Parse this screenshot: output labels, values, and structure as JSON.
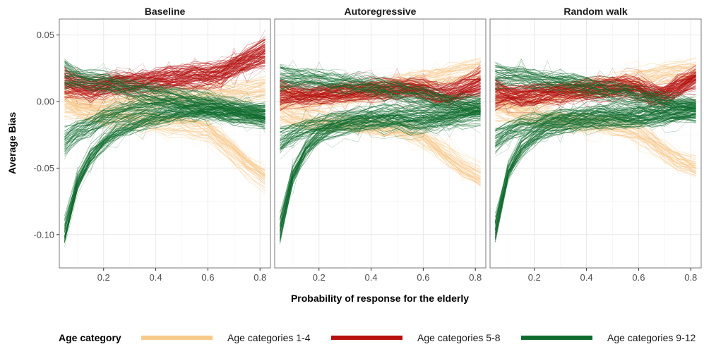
{
  "chart_data": {
    "type": "line",
    "xlabel": "Probability of response for the elderly",
    "ylabel": "Average Bias",
    "xlim": [
      0.03,
      0.84
    ],
    "ylim": [
      -0.125,
      0.062
    ],
    "x_ticks": [
      0.2,
      0.4,
      0.6,
      0.8
    ],
    "x_tick_labels": [
      "0.2",
      "0.4",
      "0.6",
      "0.8"
    ],
    "y_ticks": [
      -0.1,
      -0.05,
      0.0,
      0.05
    ],
    "y_tick_labels": [
      "-0.10",
      "-0.05",
      "0.00",
      "0.05"
    ],
    "grid": true,
    "legend": {
      "title": "Age category",
      "placement": "bottom",
      "entries": [
        {
          "label": "Age categories 1-4",
          "color": "#f8c98a"
        },
        {
          "label": "Age categories 5-8",
          "color": "#b5100f"
        },
        {
          "label": "Age categories 9-12",
          "color": "#0e6b2e"
        }
      ]
    },
    "x": [
      0.05,
      0.1,
      0.15,
      0.2,
      0.25,
      0.3,
      0.35,
      0.4,
      0.45,
      0.5,
      0.55,
      0.6,
      0.65,
      0.7,
      0.75,
      0.82
    ],
    "panels": [
      {
        "title": "Baseline",
        "series": [
          {
            "group": "1-4",
            "center": [
              -0.002,
              -0.008,
              -0.01,
              -0.012,
              -0.013,
              -0.014,
              -0.015,
              -0.016,
              -0.017,
              -0.018,
              -0.02,
              -0.022,
              -0.03,
              -0.038,
              -0.048,
              -0.058
            ]
          },
          {
            "group": "1-4",
            "center": [
              0.003,
              0.0,
              -0.002,
              -0.002,
              -0.001,
              0.0,
              0.001,
              0.002,
              0.003,
              0.004,
              0.004,
              0.005,
              0.006,
              0.007,
              0.008,
              0.01
            ]
          },
          {
            "group": "5-8",
            "center": [
              0.012,
              0.01,
              0.008,
              0.01,
              0.012,
              0.011,
              0.013,
              0.014,
              0.015,
              0.016,
              0.017,
              0.018,
              0.02,
              0.026,
              0.032,
              0.04
            ]
          },
          {
            "group": "5-8",
            "center": [
              0.016,
              0.013,
              0.011,
              0.013,
              0.015,
              0.014,
              0.016,
              0.017,
              0.018,
              0.019,
              0.021,
              0.02,
              0.022,
              0.025,
              0.028,
              0.032
            ]
          },
          {
            "group": "9-12",
            "center": [
              -0.098,
              -0.06,
              -0.04,
              -0.03,
              -0.022,
              -0.018,
              -0.015,
              -0.012,
              -0.01,
              -0.008,
              -0.007,
              -0.006,
              -0.006,
              -0.007,
              -0.008,
              -0.009
            ]
          },
          {
            "group": "9-12",
            "center": [
              -0.03,
              -0.022,
              -0.018,
              -0.012,
              -0.008,
              -0.006,
              -0.004,
              -0.003,
              -0.002,
              -0.003,
              -0.004,
              -0.005,
              -0.006,
              -0.007,
              -0.008,
              -0.01
            ]
          },
          {
            "group": "9-12",
            "center": [
              0.02,
              0.018,
              0.016,
              0.014,
              0.012,
              0.01,
              0.008,
              0.006,
              0.004,
              0.002,
              0.0,
              -0.002,
              -0.004,
              -0.006,
              -0.008,
              -0.01
            ]
          }
        ]
      },
      {
        "title": "Autoregressive",
        "series": [
          {
            "group": "1-4",
            "center": [
              -0.005,
              -0.01,
              -0.012,
              -0.013,
              -0.014,
              -0.015,
              -0.016,
              -0.017,
              -0.018,
              -0.02,
              -0.022,
              -0.025,
              -0.032,
              -0.04,
              -0.048,
              -0.055
            ]
          },
          {
            "group": "1-4",
            "center": [
              0.004,
              0.002,
              0.0,
              0.001,
              0.003,
              0.004,
              0.006,
              0.008,
              0.01,
              0.012,
              0.014,
              0.016,
              0.018,
              0.02,
              0.022,
              0.024
            ]
          },
          {
            "group": "5-8",
            "center": [
              0.008,
              0.007,
              0.006,
              0.007,
              0.008,
              0.008,
              0.009,
              0.01,
              0.01,
              0.011,
              0.012,
              0.011,
              0.006,
              0.004,
              0.008,
              0.012
            ]
          },
          {
            "group": "5-8",
            "center": [
              0.004,
              0.004,
              0.003,
              0.004,
              0.005,
              0.006,
              0.006,
              0.007,
              0.007,
              0.008,
              0.009,
              0.008,
              0.005,
              0.006,
              0.01,
              0.016
            ]
          },
          {
            "group": "9-12",
            "center": [
              -0.096,
              -0.055,
              -0.036,
              -0.026,
              -0.02,
              -0.018,
              -0.016,
              -0.015,
              -0.015,
              -0.015,
              -0.016,
              -0.016,
              -0.015,
              -0.013,
              -0.011,
              -0.009
            ]
          },
          {
            "group": "9-12",
            "center": [
              -0.03,
              -0.024,
              -0.02,
              -0.018,
              -0.016,
              -0.014,
              -0.012,
              -0.011,
              -0.01,
              -0.01,
              -0.01,
              -0.01,
              -0.009,
              -0.008,
              -0.006,
              -0.004
            ]
          },
          {
            "group": "9-12",
            "center": [
              0.018,
              0.018,
              0.017,
              0.016,
              0.015,
              0.014,
              0.013,
              0.012,
              0.01,
              0.008,
              0.006,
              0.004,
              0.002,
              0.0,
              -0.002,
              -0.004
            ]
          }
        ]
      },
      {
        "title": "Random walk",
        "series": [
          {
            "group": "1-4",
            "center": [
              -0.004,
              -0.009,
              -0.011,
              -0.012,
              -0.013,
              -0.014,
              -0.015,
              -0.016,
              -0.017,
              -0.019,
              -0.021,
              -0.024,
              -0.03,
              -0.037,
              -0.044,
              -0.05
            ]
          },
          {
            "group": "1-4",
            "center": [
              0.004,
              0.002,
              0.0,
              0.001,
              0.003,
              0.005,
              0.007,
              0.009,
              0.011,
              0.013,
              0.015,
              0.017,
              0.019,
              0.021,
              0.022,
              0.023
            ]
          },
          {
            "group": "5-8",
            "center": [
              0.007,
              0.006,
              0.005,
              0.006,
              0.007,
              0.008,
              0.009,
              0.01,
              0.011,
              0.012,
              0.013,
              0.011,
              0.006,
              0.004,
              0.01,
              0.016
            ]
          },
          {
            "group": "5-8",
            "center": [
              0.004,
              0.004,
              0.003,
              0.004,
              0.005,
              0.006,
              0.007,
              0.008,
              0.008,
              0.009,
              0.01,
              0.009,
              0.005,
              0.006,
              0.012,
              0.02
            ]
          },
          {
            "group": "9-12",
            "center": [
              -0.094,
              -0.052,
              -0.034,
              -0.025,
              -0.019,
              -0.017,
              -0.015,
              -0.014,
              -0.013,
              -0.013,
              -0.013,
              -0.012,
              -0.011,
              -0.01,
              -0.009,
              -0.008
            ]
          },
          {
            "group": "9-12",
            "center": [
              -0.028,
              -0.022,
              -0.018,
              -0.016,
              -0.014,
              -0.012,
              -0.011,
              -0.01,
              -0.009,
              -0.009,
              -0.009,
              -0.009,
              -0.008,
              -0.007,
              -0.006,
              -0.004
            ]
          },
          {
            "group": "9-12",
            "center": [
              0.02,
              0.019,
              0.018,
              0.017,
              0.016,
              0.015,
              0.014,
              0.012,
              0.01,
              0.008,
              0.006,
              0.004,
              0.002,
              0.0,
              -0.002,
              -0.004
            ]
          }
        ]
      }
    ]
  }
}
